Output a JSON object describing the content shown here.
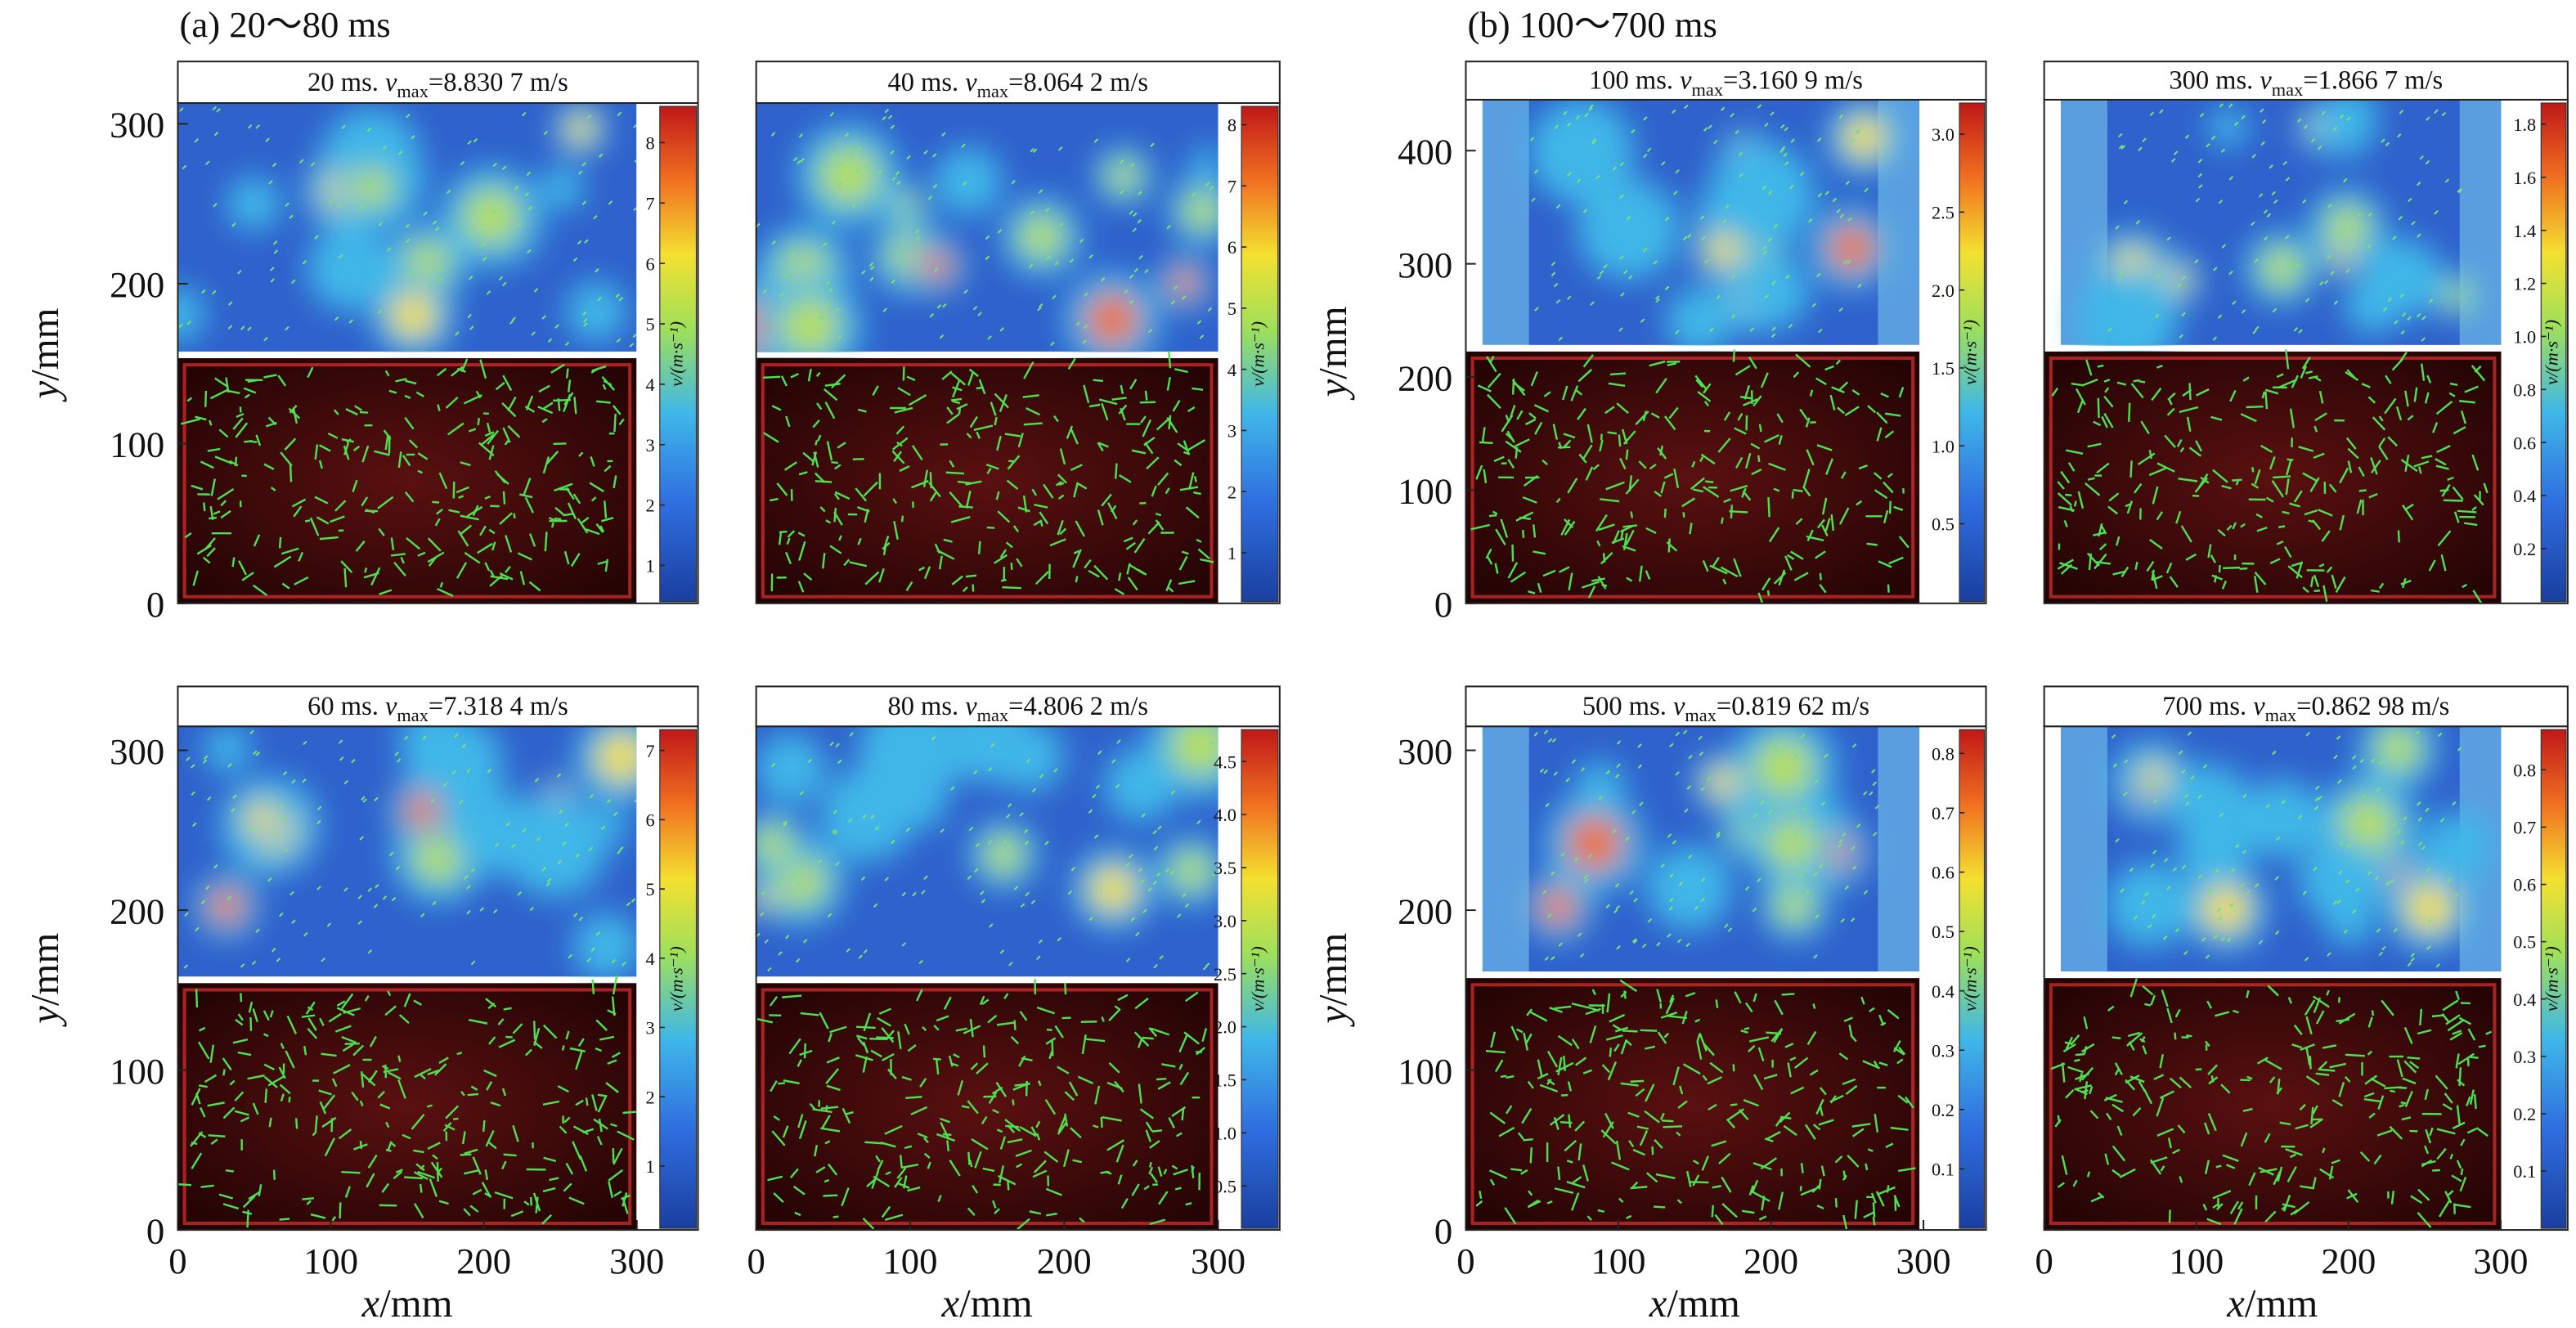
{
  "groups": [
    "(a) 20～80 ms",
    "(b) 100～700 ms"
  ],
  "chart_data": [
    {
      "type": "velocity-field",
      "title": {
        "time": "20 ms. ",
        "var": "v",
        "sub": "max",
        "rest": "=8.830 7 m/s"
      },
      "xlim": [
        0,
        340
      ],
      "ylim": [
        0,
        313
      ],
      "yticks": [
        0,
        100,
        200,
        300
      ],
      "ylabel": {
        "var": "y",
        "unit": "/mm"
      },
      "clim": [
        0.4,
        8.6
      ],
      "cticks": [
        1,
        2,
        3,
        4,
        5,
        6,
        7,
        8
      ],
      "cbar_label": "v/(m·s⁻¹)",
      "colormap": "jet"
    },
    {
      "type": "velocity-field",
      "title": {
        "time": "40 ms. ",
        "var": "v",
        "sub": "max",
        "rest": "=8.064 2 m/s"
      },
      "xlim": [
        0,
        340
      ],
      "ylim": [
        0,
        313
      ],
      "clim": [
        0.2,
        8.3
      ],
      "cticks": [
        1,
        2,
        3,
        4,
        5,
        6,
        7,
        8
      ],
      "cbar_label": "v/(m·s⁻¹)",
      "colormap": "jet"
    },
    {
      "type": "velocity-field",
      "title": {
        "time": "60 ms. ",
        "var": "v",
        "sub": "max",
        "rest": "=7.318 4 m/s"
      },
      "xlim": [
        0,
        340
      ],
      "ylim": [
        0,
        315
      ],
      "xticks": [
        0,
        100,
        200,
        300
      ],
      "xlabel": {
        "var": "x",
        "unit": "/mm"
      },
      "yticks": [
        0,
        100,
        200,
        300
      ],
      "ylabel": {
        "var": "y",
        "unit": "/mm"
      },
      "clim": [
        0.1,
        7.3
      ],
      "cticks": [
        1,
        2,
        3,
        4,
        5,
        6,
        7
      ],
      "cbar_label": "v/(m·s⁻¹)",
      "colormap": "jet"
    },
    {
      "type": "velocity-field",
      "title": {
        "time": "80 ms. ",
        "var": "v",
        "sub": "max",
        "rest": "=4.806 2 m/s"
      },
      "xlim": [
        0,
        340
      ],
      "ylim": [
        0,
        315
      ],
      "xticks": [
        0,
        100,
        200,
        300
      ],
      "xlabel": {
        "var": "x",
        "unit": "/mm"
      },
      "clim": [
        0.1,
        4.8
      ],
      "cticks": [
        0.5,
        {
          "value": 1,
          "label": "1.0"
        },
        1.5,
        {
          "value": 2,
          "label": "2.0"
        },
        2.5,
        {
          "value": 3,
          "label": "3.0"
        },
        3.5,
        {
          "value": 4,
          "label": "4.0"
        },
        4.5
      ],
      "cbar_label": "v/(m·s⁻¹)",
      "colormap": "jet"
    },
    {
      "type": "velocity-field",
      "title": {
        "time": "100 ms. ",
        "var": "v",
        "sub": "max",
        "rest": "=3.160 9 m/s"
      },
      "xlim": [
        0,
        341
      ],
      "ylim": [
        0,
        445
      ],
      "yticks": [
        0,
        100,
        200,
        300,
        400
      ],
      "ylabel": {
        "var": "y",
        "unit": "/mm"
      },
      "clim": [
        0,
        3.2
      ],
      "cticks": [
        0.5,
        {
          "value": 1,
          "label": "1.0"
        },
        1.5,
        {
          "value": 2,
          "label": "2.0"
        },
        2.5,
        {
          "value": 3,
          "label": "3.0"
        }
      ],
      "cbar_label": "v/(m·s⁻¹)",
      "colormap": "jet"
    },
    {
      "type": "velocity-field",
      "title": {
        "time": "300 ms. ",
        "var": "v",
        "sub": "max",
        "rest": "=1.866 7 m/s"
      },
      "xlim": [
        0,
        344
      ],
      "ylim": [
        0,
        445
      ],
      "clim": [
        0,
        1.88
      ],
      "cticks": [
        0.2,
        0.4,
        0.6,
        0.8,
        {
          "value": 1,
          "label": "1.0"
        },
        1.2,
        1.4,
        1.6,
        1.8
      ],
      "cbar_label": "v/(m·s⁻¹)",
      "colormap": "jet"
    },
    {
      "type": "velocity-field",
      "title": {
        "time": "500 ms. ",
        "var": "v",
        "sub": "max",
        "rest": "=0.819 62 m/s"
      },
      "xlim": [
        0,
        341
      ],
      "ylim": [
        0,
        315
      ],
      "xticks": [
        0,
        100,
        200,
        300
      ],
      "xlabel": {
        "var": "x",
        "unit": "/mm"
      },
      "yticks": [
        0,
        100,
        200,
        300
      ],
      "ylabel": {
        "var": "y",
        "unit": "/mm"
      },
      "clim": [
        0,
        0.84
      ],
      "cticks": [
        0.1,
        0.2,
        0.3,
        0.4,
        0.5,
        0.6,
        0.7,
        0.8
      ],
      "cbar_label": "v/(m·s⁻¹)",
      "colormap": "jet"
    },
    {
      "type": "velocity-field",
      "title": {
        "time": "700 ms. ",
        "var": "v",
        "sub": "max",
        "rest": "=0.862 98 m/s"
      },
      "xlim": [
        0,
        344
      ],
      "ylim": [
        0,
        315
      ],
      "xticks": [
        0,
        100,
        200,
        300
      ],
      "xlabel": {
        "var": "x",
        "unit": "/mm"
      },
      "clim": [
        0,
        0.87
      ],
      "cticks": [
        0.1,
        0.2,
        0.3,
        0.4,
        0.5,
        0.6,
        0.7,
        0.8
      ],
      "cbar_label": "v/(m·s⁻¹)",
      "colormap": "jet"
    }
  ]
}
